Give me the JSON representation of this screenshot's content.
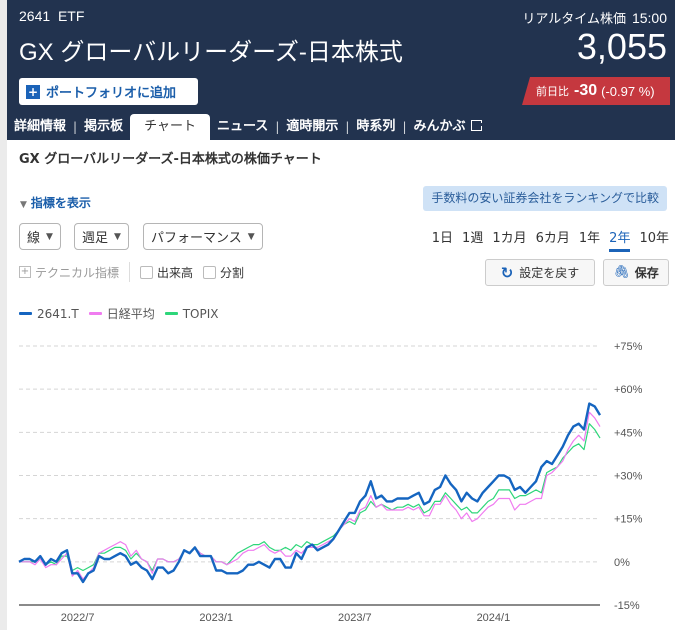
{
  "header": {
    "code": "2641",
    "market": "ETF",
    "name": "GX グローバルリーダーズ-日本株式",
    "realtime_label": "リアルタイム株価",
    "time": "15:00",
    "price": "3,055",
    "add_portfolio_label": "ポートフォリオに追加",
    "change_label": "前日比",
    "change_value": "-30",
    "change_pct": "(-0.97 %)",
    "colors": {
      "header_bg": "#22334f",
      "badge_bg": "#c5383f",
      "accent": "#1b63b8"
    }
  },
  "tabs": [
    {
      "label": "詳細情報",
      "active": false
    },
    {
      "label": "掲示板",
      "active": false
    },
    {
      "label": "チャート",
      "active": true
    },
    {
      "label": "ニュース",
      "active": false
    },
    {
      "label": "適時開示",
      "active": false
    },
    {
      "label": "時系列",
      "active": false
    },
    {
      "label": "みんかぶ",
      "active": false,
      "icon": "external-link-icon"
    }
  ],
  "page": {
    "subtitle": "GX グローバルリーダーズ-日本株式の株価チャート",
    "indicator_toggle": "指標を表示",
    "ranking_button": "手数料の安い証券会社をランキングで比較"
  },
  "controls": {
    "chart_type": "線",
    "interval": "週足",
    "mode": "パフォーマンス",
    "ranges": [
      "1日",
      "1週",
      "1カ月",
      "6カ月",
      "1年",
      "2年",
      "10年"
    ],
    "active_range": "2年",
    "technical_label": "テクニカル指標",
    "volume_label": "出来高",
    "split_label": "分割",
    "reset_label": "設定を戻す",
    "save_label": "保存"
  },
  "legend": [
    {
      "label": "2641.T",
      "color": "#1565c0"
    },
    {
      "label": "日経平均",
      "color": "#f07cf0"
    },
    {
      "label": "TOPIX",
      "color": "#2ed67a"
    }
  ],
  "chart_data": {
    "type": "line",
    "title": "GX グローバルリーダーズ-日本株式の株価チャート",
    "xlabel": "",
    "ylabel": "",
    "ylim": [
      -15,
      75
    ],
    "yticks": [
      "+75%",
      "+60%",
      "+45%",
      "+30%",
      "+15%",
      "0%",
      "-15%"
    ],
    "ytick_values": [
      75,
      60,
      45,
      30,
      15,
      0,
      -15
    ],
    "xticks": [
      "2022/7",
      "2023/1",
      "2023/7",
      "2024/1"
    ],
    "xtick_index": [
      11,
      37,
      63,
      89
    ],
    "grid": true,
    "legend_position": "top-left",
    "series": [
      {
        "name": "2641.T",
        "color": "#1565c0",
        "values": [
          0,
          1,
          1,
          0,
          2,
          -1,
          1,
          0,
          3,
          4,
          -4,
          -4,
          -7,
          -4,
          -3,
          2,
          1,
          1,
          2,
          3,
          2,
          -1,
          0,
          -2,
          -3,
          -6,
          -2,
          -2,
          -4,
          -3,
          0,
          4,
          3,
          5,
          2,
          2,
          2,
          -3,
          -3,
          -4,
          -4,
          -4,
          -3,
          -1,
          -1,
          0,
          -1,
          -2,
          1,
          1,
          -2,
          -2,
          3,
          1,
          5,
          6,
          4,
          5,
          6,
          8,
          11,
          14,
          17,
          17,
          21,
          23,
          28,
          22,
          23,
          21,
          21,
          22,
          22,
          22,
          23,
          24,
          20,
          21,
          25,
          26,
          30,
          27,
          25,
          21,
          24,
          22,
          21,
          24,
          26,
          28,
          30,
          30,
          29,
          25,
          26,
          24,
          26,
          28,
          33,
          35,
          34,
          37,
          40,
          44,
          47,
          48,
          46,
          55,
          54,
          51
        ]
      },
      {
        "name": "日経平均",
        "color": "#f07cf0",
        "values": [
          0,
          0,
          0,
          -1,
          1,
          -2,
          -1,
          -1,
          1,
          3,
          -5,
          -3,
          -6,
          -4,
          -2,
          3,
          4,
          5,
          6,
          7,
          6,
          2,
          4,
          1,
          0,
          -4,
          1,
          1,
          0,
          0,
          1,
          4,
          3,
          5,
          3,
          2,
          2,
          0,
          0,
          -1,
          0,
          1,
          3,
          4,
          4,
          5,
          6,
          4,
          3,
          4,
          2,
          2,
          4,
          3,
          5,
          5,
          5,
          6,
          7,
          8,
          11,
          13,
          15,
          14,
          18,
          19,
          23,
          19,
          20,
          18,
          18,
          18,
          18,
          19,
          18,
          19,
          16,
          16,
          20,
          20,
          23,
          20,
          18,
          15,
          17,
          14,
          15,
          17,
          19,
          20,
          22,
          22,
          22,
          18,
          20,
          20,
          21,
          22,
          22,
          30,
          31,
          33,
          35,
          39,
          42,
          44,
          42,
          52,
          50,
          47
        ]
      },
      {
        "name": "TOPIX",
        "color": "#2ed67a",
        "values": [
          0,
          0,
          0,
          0,
          1,
          -1,
          0,
          -1,
          2,
          2,
          -3,
          -2,
          -3,
          -2,
          -1,
          3,
          3,
          4,
          5,
          5,
          4,
          1,
          3,
          1,
          0,
          -3,
          1,
          1,
          0,
          0,
          1,
          4,
          3,
          5,
          3,
          2,
          2,
          0,
          0,
          -1,
          1,
          3,
          4,
          5,
          6,
          6,
          7,
          5,
          4,
          4,
          5,
          4,
          6,
          5,
          7,
          6,
          6,
          7,
          8,
          9,
          11,
          13,
          14,
          13,
          17,
          18,
          21,
          19,
          20,
          19,
          18,
          19,
          19,
          20,
          19,
          20,
          17,
          18,
          21,
          21,
          24,
          22,
          20,
          18,
          19,
          17,
          17,
          19,
          21,
          22,
          25,
          25,
          25,
          22,
          23,
          23,
          24,
          25,
          24,
          31,
          32,
          33,
          36,
          38,
          40,
          41,
          39,
          48,
          46,
          43
        ]
      }
    ]
  }
}
